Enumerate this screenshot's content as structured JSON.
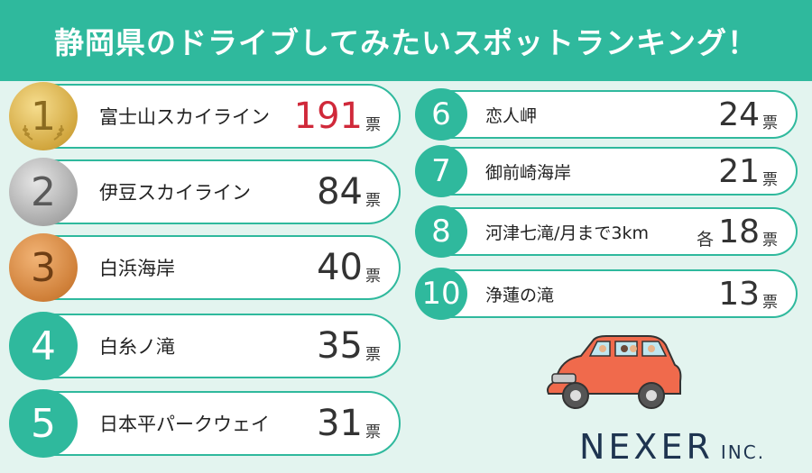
{
  "title": "静岡県のドライブしてみたいスポットランキング！",
  "vote_unit": "票",
  "tie_prefix": "各",
  "rankings": [
    {
      "rank": "1",
      "name": "富士山スカイライン",
      "votes": "191"
    },
    {
      "rank": "2",
      "name": "伊豆スカイライン",
      "votes": "84"
    },
    {
      "rank": "3",
      "name": "白浜海岸",
      "votes": "40"
    },
    {
      "rank": "4",
      "name": "白糸ノ滝",
      "votes": "35"
    },
    {
      "rank": "5",
      "name": "日本平パークウェイ",
      "votes": "31"
    },
    {
      "rank": "6",
      "name": "恋人岬",
      "votes": "24"
    },
    {
      "rank": "7",
      "name": "御前崎海岸",
      "votes": "21"
    },
    {
      "rank": "8",
      "name": "河津七滝/月まで3km",
      "votes": "18"
    },
    {
      "rank": "10",
      "name": "浄蓮の滝",
      "votes": "13"
    }
  ],
  "logo": {
    "main": "NEXER",
    "suffix": "INC."
  },
  "colors": {
    "accent": "#2fb99d",
    "background": "#e3f4ef",
    "highlight": "#d0293a",
    "logo": "#1e3450"
  }
}
